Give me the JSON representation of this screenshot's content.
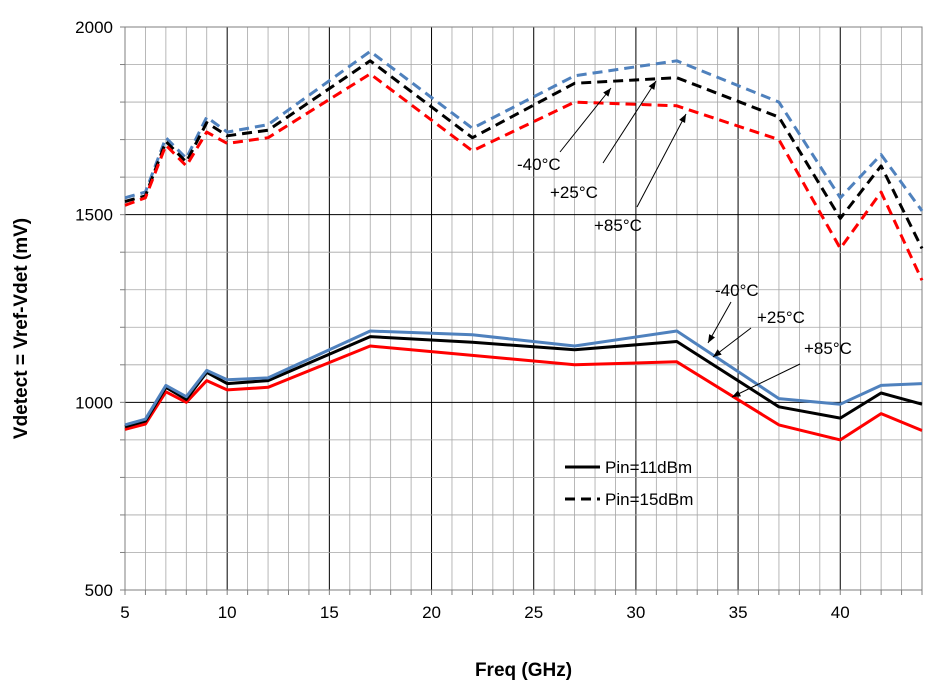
{
  "chart_data": {
    "type": "line",
    "xlabel": "Freq (GHz)",
    "ylabel": "Vdetect = Vref-Vdet (mV)",
    "xlim": [
      5,
      44
    ],
    "ylim": [
      500,
      2000
    ],
    "xticks": [
      5,
      10,
      15,
      20,
      25,
      30,
      35,
      40
    ],
    "yticks": [
      500,
      1000,
      1500,
      2000
    ],
    "x_tick_labels": [
      "5",
      "10",
      "15",
      "20",
      "25",
      "30",
      "35",
      "40"
    ],
    "y_tick_labels": [
      "500",
      "1000",
      "1500",
      "2000"
    ],
    "grid": "on",
    "legend_position": "right",
    "legend": [
      {
        "label": "Pin=11dBm",
        "style": "solid"
      },
      {
        "label": "Pin=15dBm",
        "style": "dashed"
      }
    ],
    "colors": {
      "minus40": "#4f81bd",
      "plus25": "#000000",
      "plus85": "#ff0000"
    },
    "x": [
      5,
      6,
      7,
      8,
      9,
      10,
      12,
      17,
      22,
      27,
      32,
      37,
      40,
      42,
      44
    ],
    "series": [
      {
        "pin": "11dBm",
        "temp": "-40°C",
        "style": "solid",
        "color": "#4f81bd",
        "values": [
          940,
          955,
          1045,
          1015,
          1085,
          1060,
          1065,
          1190,
          1180,
          1150,
          1190,
          1010,
          995,
          1045,
          1050
        ]
      },
      {
        "pin": "11dBm",
        "temp": "+25°C",
        "style": "solid",
        "color": "#000000",
        "values": [
          935,
          950,
          1040,
          1008,
          1080,
          1050,
          1058,
          1175,
          1160,
          1140,
          1162,
          988,
          958,
          1025,
          995
        ]
      },
      {
        "pin": "11dBm",
        "temp": "+85°C",
        "style": "solid",
        "color": "#ff0000",
        "values": [
          928,
          942,
          1028,
          1000,
          1058,
          1033,
          1040,
          1150,
          1125,
          1100,
          1108,
          940,
          900,
          970,
          925
        ]
      },
      {
        "pin": "15dBm",
        "temp": "-40°C",
        "style": "dashed",
        "color": "#4f81bd",
        "values": [
          1545,
          1560,
          1705,
          1650,
          1760,
          1720,
          1740,
          1935,
          1730,
          1870,
          1910,
          1800,
          1545,
          1660,
          1510
        ]
      },
      {
        "pin": "15dBm",
        "temp": "+25°C",
        "style": "dashed",
        "color": "#000000",
        "values": [
          1535,
          1550,
          1695,
          1640,
          1745,
          1710,
          1725,
          1910,
          1705,
          1850,
          1865,
          1760,
          1490,
          1630,
          1410
        ]
      },
      {
        "pin": "15dBm",
        "temp": "+85°C",
        "style": "dashed",
        "color": "#ff0000",
        "values": [
          1525,
          1545,
          1685,
          1630,
          1720,
          1690,
          1705,
          1875,
          1670,
          1800,
          1790,
          1700,
          1410,
          1560,
          1325
        ]
      }
    ],
    "annotations_upper": [
      "-40°C",
      "+25°C",
      "+85°C"
    ],
    "annotations_lower": [
      "-40°C",
      "+25°C",
      "+85°C"
    ]
  }
}
